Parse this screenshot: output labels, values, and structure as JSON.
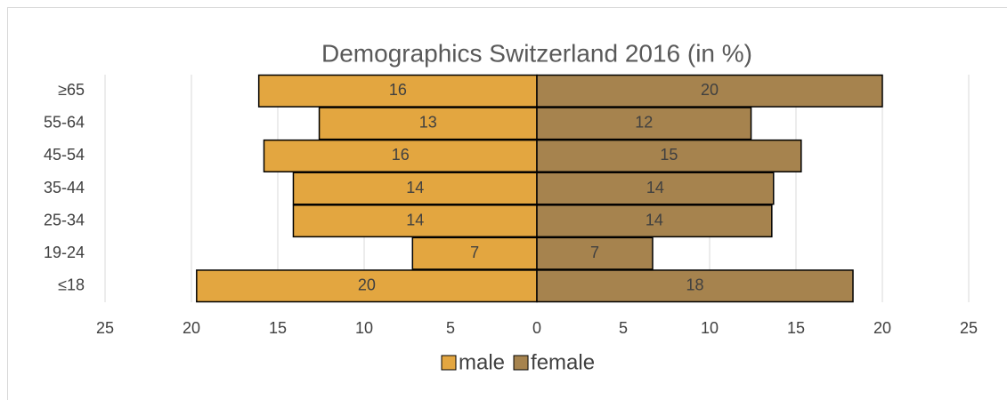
{
  "chart_data": {
    "type": "pyramid",
    "title": "Demographics Switzerland 2016 (in %)",
    "categories": [
      "≥65",
      "55-64",
      "45-54",
      "35-44",
      "25-34",
      "19-24",
      "≤18"
    ],
    "series": [
      {
        "name": "male",
        "color": "#e3a640",
        "values": [
          -16.1,
          -12.6,
          -15.8,
          -14.1,
          -14.1,
          -7.2,
          -19.7
        ],
        "value_labels": [
          "16",
          "13",
          "16",
          "14",
          "14",
          "7",
          "20"
        ]
      },
      {
        "name": "female",
        "color": "#a6834e",
        "values": [
          20.0,
          12.4,
          15.3,
          13.7,
          13.6,
          6.7,
          18.3
        ],
        "value_labels": [
          "20",
          "12",
          "15",
          "14",
          "14",
          "7",
          "18"
        ]
      }
    ],
    "xlim": [
      -25,
      25
    ],
    "xticks": [
      {
        "value": -25,
        "label": "25"
      },
      {
        "value": -20,
        "label": "20"
      },
      {
        "value": -15,
        "label": "15"
      },
      {
        "value": -10,
        "label": "10"
      },
      {
        "value": -5,
        "label": "5"
      },
      0,
      5,
      10,
      15,
      20,
      25
    ],
    "grid": true,
    "legend": "bottom"
  }
}
